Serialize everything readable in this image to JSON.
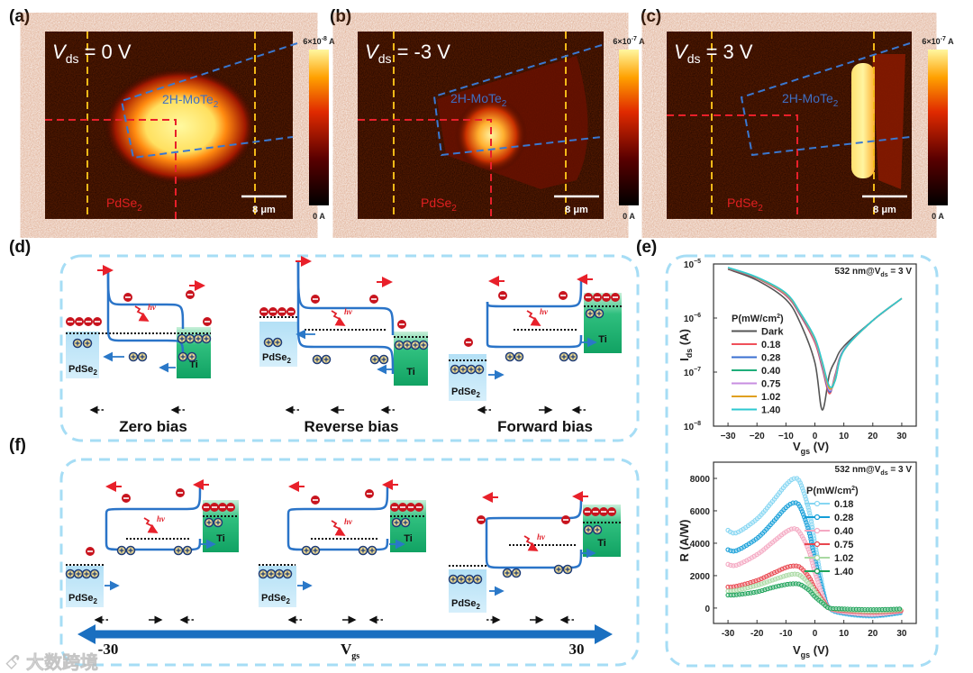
{
  "watermark": "大数跨境",
  "panels": {
    "a": "(a)",
    "b": "(b)",
    "c": "(c)",
    "d": "(d)",
    "e": "(e)",
    "f": "(f)"
  },
  "maps": [
    {
      "v_sym": "V",
      "v_sub": "ds",
      "v_val": " = 0 V",
      "cbar_max": "6×10",
      "cbar_exp": "-8",
      "cbar_unit": " A",
      "cbar_min": "0 A",
      "material_top": "2H-MoTe",
      "material_top_sub": "2",
      "material_bottom": "PdSe",
      "material_bottom_sub": "2",
      "scalebar": "8 μm"
    },
    {
      "v_sym": "V",
      "v_sub": "ds",
      "v_val": " = -3 V",
      "cbar_max": "6×10",
      "cbar_exp": "-7",
      "cbar_unit": " A",
      "cbar_min": "0 A",
      "material_top": "2H-MoTe",
      "material_top_sub": "2",
      "material_bottom": "PdSe",
      "material_bottom_sub": "2",
      "scalebar": "8 μm"
    },
    {
      "v_sym": "V",
      "v_sub": "ds",
      "v_val": " = 3 V",
      "cbar_max": "6×10",
      "cbar_exp": "-7",
      "cbar_unit": " A",
      "cbar_min": "0 A",
      "material_top": "2H-MoTe",
      "material_top_sub": "2",
      "material_bottom": "PdSe",
      "material_bottom_sub": "2",
      "scalebar": "8 μm"
    }
  ],
  "common": {
    "pdse": "PdSe",
    "pdse_sub": "2",
    "ti": "Ti",
    "hv": "hv"
  },
  "bias_labels": [
    "Zero bias",
    "Reverse bias",
    "Forward bias"
  ],
  "gate_axis": {
    "min": "-30",
    "max": "30",
    "label": "V",
    "label_sub": "gs"
  },
  "colors": {
    "box_border": "#a6ddf5",
    "electron": "#c8141e",
    "band": "#2a74c8",
    "gate_arrow": "#1a6fc0"
  },
  "chart_data": [
    {
      "type": "line",
      "yscale": "log",
      "annotation": {
        "pre": "532 nm@V",
        "sub": "ds",
        "post": " = 3 V"
      },
      "xlabel": {
        "pre": "V",
        "sub": "gs",
        "post": " (V)"
      },
      "ylabel": {
        "pre": "I",
        "sub": "ds",
        "post": " (A)"
      },
      "xlim": [
        -35,
        35
      ],
      "ylim": [
        1e-08,
        1e-05
      ],
      "xticks": [
        -30,
        -20,
        -10,
        0,
        10,
        20,
        30
      ],
      "xtick_labels": [
        "−30",
        "−20",
        "−10",
        "0",
        "10",
        "20",
        "30"
      ],
      "yticks": [
        1e-08,
        1e-07,
        1e-06,
        1e-05
      ],
      "ytick_labels": [
        {
          "base": "10",
          "exp": "−8"
        },
        {
          "base": "10",
          "exp": "−7"
        },
        {
          "base": "10",
          "exp": "−6"
        },
        {
          "base": "10",
          "exp": "−5"
        }
      ],
      "legend_title": {
        "pre": "P(mW/cm",
        "sup": "2",
        "post": ")"
      },
      "legend_position": "center-left",
      "x": [
        -30,
        -20,
        -10,
        -5,
        0,
        2.5,
        5,
        7,
        10,
        20,
        30
      ],
      "series": [
        {
          "name": "Dark",
          "color": "#555555",
          "values": [
            8e-06,
            5e-06,
            2.2e-06,
            8e-07,
            1.5e-07,
            2e-08,
            9e-08,
            1.6e-07,
            3e-07,
            9e-07,
            2.3e-06
          ]
        },
        {
          "name": "0.18",
          "color": "#f0505a",
          "values": [
            8.3e-06,
            5.4e-06,
            2.6e-06,
            1.1e-06,
            3.5e-07,
            1.2e-07,
            4e-08,
            9e-08,
            2.6e-07,
            9e-07,
            2.3e-06
          ]
        },
        {
          "name": "0.28",
          "color": "#3a6fd0",
          "values": [
            8.4e-06,
            5.5e-06,
            2.7e-06,
            1.15e-06,
            3.8e-07,
            1.3e-07,
            4.3e-08,
            8.5e-08,
            2.6e-07,
            9e-07,
            2.3e-06
          ]
        },
        {
          "name": "0.40",
          "color": "#1fae7a",
          "values": [
            8.5e-06,
            5.6e-06,
            2.8e-06,
            1.2e-06,
            4e-07,
            1.5e-07,
            5e-08,
            7e-08,
            2.5e-07,
            9e-07,
            2.3e-06
          ]
        },
        {
          "name": "0.75",
          "color": "#c78ee0",
          "values": [
            8.5e-06,
            5.6e-06,
            2.75e-06,
            1.2e-06,
            3.9e-07,
            1.4e-07,
            4.6e-08,
            8e-08,
            2.55e-07,
            9e-07,
            2.3e-06
          ]
        },
        {
          "name": "1.02",
          "color": "#e0a020",
          "values": [
            8.5e-06,
            5.6e-06,
            2.8e-06,
            1.22e-06,
            4.1e-07,
            1.5e-07,
            5e-08,
            7.5e-08,
            2.5e-07,
            9e-07,
            2.3e-06
          ]
        },
        {
          "name": "1.40",
          "color": "#2ec8d0",
          "values": [
            8.6e-06,
            5.7e-06,
            2.9e-06,
            1.25e-06,
            4.3e-07,
            1.6e-07,
            5.5e-08,
            7e-08,
            2.5e-07,
            9e-07,
            2.3e-06
          ]
        }
      ]
    },
    {
      "type": "line",
      "yscale": "linear",
      "markers": true,
      "annotation": {
        "pre": "532 nm@V",
        "sub": "ds",
        "post": " = 3 V"
      },
      "xlabel": {
        "pre": "V",
        "sub": "gs",
        "post": " (V)"
      },
      "ylabel": {
        "pre": "R (A/W)",
        "sub": "",
        "post": ""
      },
      "xlim": [
        -35,
        35
      ],
      "ylim": [
        -950,
        9000
      ],
      "xticks": [
        -30,
        -20,
        -10,
        0,
        10,
        20,
        30
      ],
      "xtick_labels": [
        "-30",
        "-20",
        "-10",
        "0",
        "10",
        "20",
        "30"
      ],
      "yticks": [
        0,
        2000,
        4000,
        6000,
        8000
      ],
      "ytick_labels": [
        "0",
        "2000",
        "4000",
        "6000",
        "8000"
      ],
      "legend_title": {
        "pre": "P(mW/cm",
        "sup": "2",
        "post": ")"
      },
      "legend_position": "right",
      "x": [
        -30,
        -27,
        -20,
        -15,
        -10,
        -7,
        -5,
        -2,
        0,
        3,
        5,
        10,
        20,
        30
      ],
      "series": [
        {
          "name": "0.18",
          "color": "#86d6f2",
          "values": [
            4800,
            4650,
            5500,
            6500,
            7600,
            8000,
            7700,
            6000,
            4000,
            1000,
            0,
            -350,
            -500,
            -300
          ]
        },
        {
          "name": "0.28",
          "color": "#149ed8",
          "values": [
            3600,
            3550,
            4300,
            5200,
            6200,
            6500,
            6200,
            4700,
            3000,
            800,
            0,
            -300,
            -450,
            -250
          ]
        },
        {
          "name": "0.40",
          "color": "#f4a8c2",
          "values": [
            2700,
            2650,
            3300,
            4000,
            4700,
            4900,
            4600,
            3500,
            2200,
            600,
            0,
            -250,
            -400,
            -200
          ]
        },
        {
          "name": "0.75",
          "color": "#e8474f",
          "values": [
            1300,
            1350,
            1700,
            2100,
            2500,
            2600,
            2500,
            1900,
            1200,
            400,
            0,
            -150,
            -250,
            -150
          ]
        },
        {
          "name": "1.02",
          "color": "#a9d9a2",
          "values": [
            1050,
            1100,
            1400,
            1700,
            2000,
            2100,
            2000,
            1500,
            1000,
            300,
            0,
            -100,
            -200,
            -100
          ]
        },
        {
          "name": "1.40",
          "color": "#1fa35a",
          "values": [
            800,
            820,
            1000,
            1250,
            1450,
            1500,
            1450,
            1100,
            700,
            250,
            0,
            -50,
            -100,
            -50
          ]
        }
      ]
    }
  ]
}
